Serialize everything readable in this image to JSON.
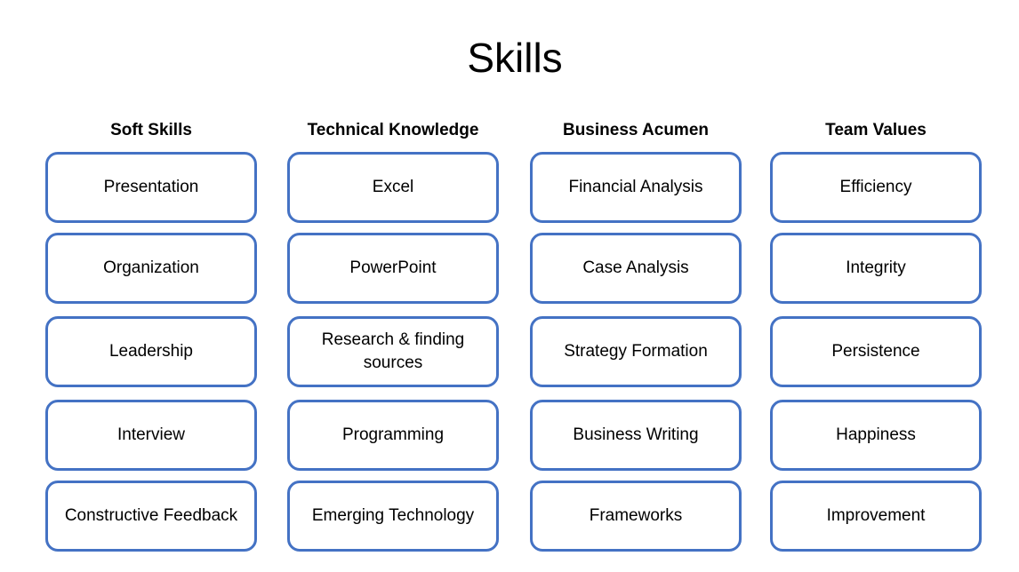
{
  "title": "Skills",
  "columns": [
    {
      "header": "Soft Skills",
      "items": [
        "Presentation",
        "Organization",
        "Leadership",
        "Interview",
        "Constructive Feedback"
      ]
    },
    {
      "header": "Technical Knowledge",
      "items": [
        "Excel",
        "PowerPoint",
        "Research & finding sources",
        "Programming",
        "Emerging Technology"
      ]
    },
    {
      "header": "Business Acumen",
      "items": [
        "Financial Analysis",
        "Case Analysis",
        "Strategy Formation",
        "Business Writing",
        "Frameworks"
      ]
    },
    {
      "header": "Team Values",
      "items": [
        "Efficiency",
        "Integrity",
        "Persistence",
        "Happiness",
        "Improvement"
      ]
    }
  ],
  "colors": {
    "box_border": "#4472c4",
    "background": "#ffffff",
    "text": "#000000"
  }
}
